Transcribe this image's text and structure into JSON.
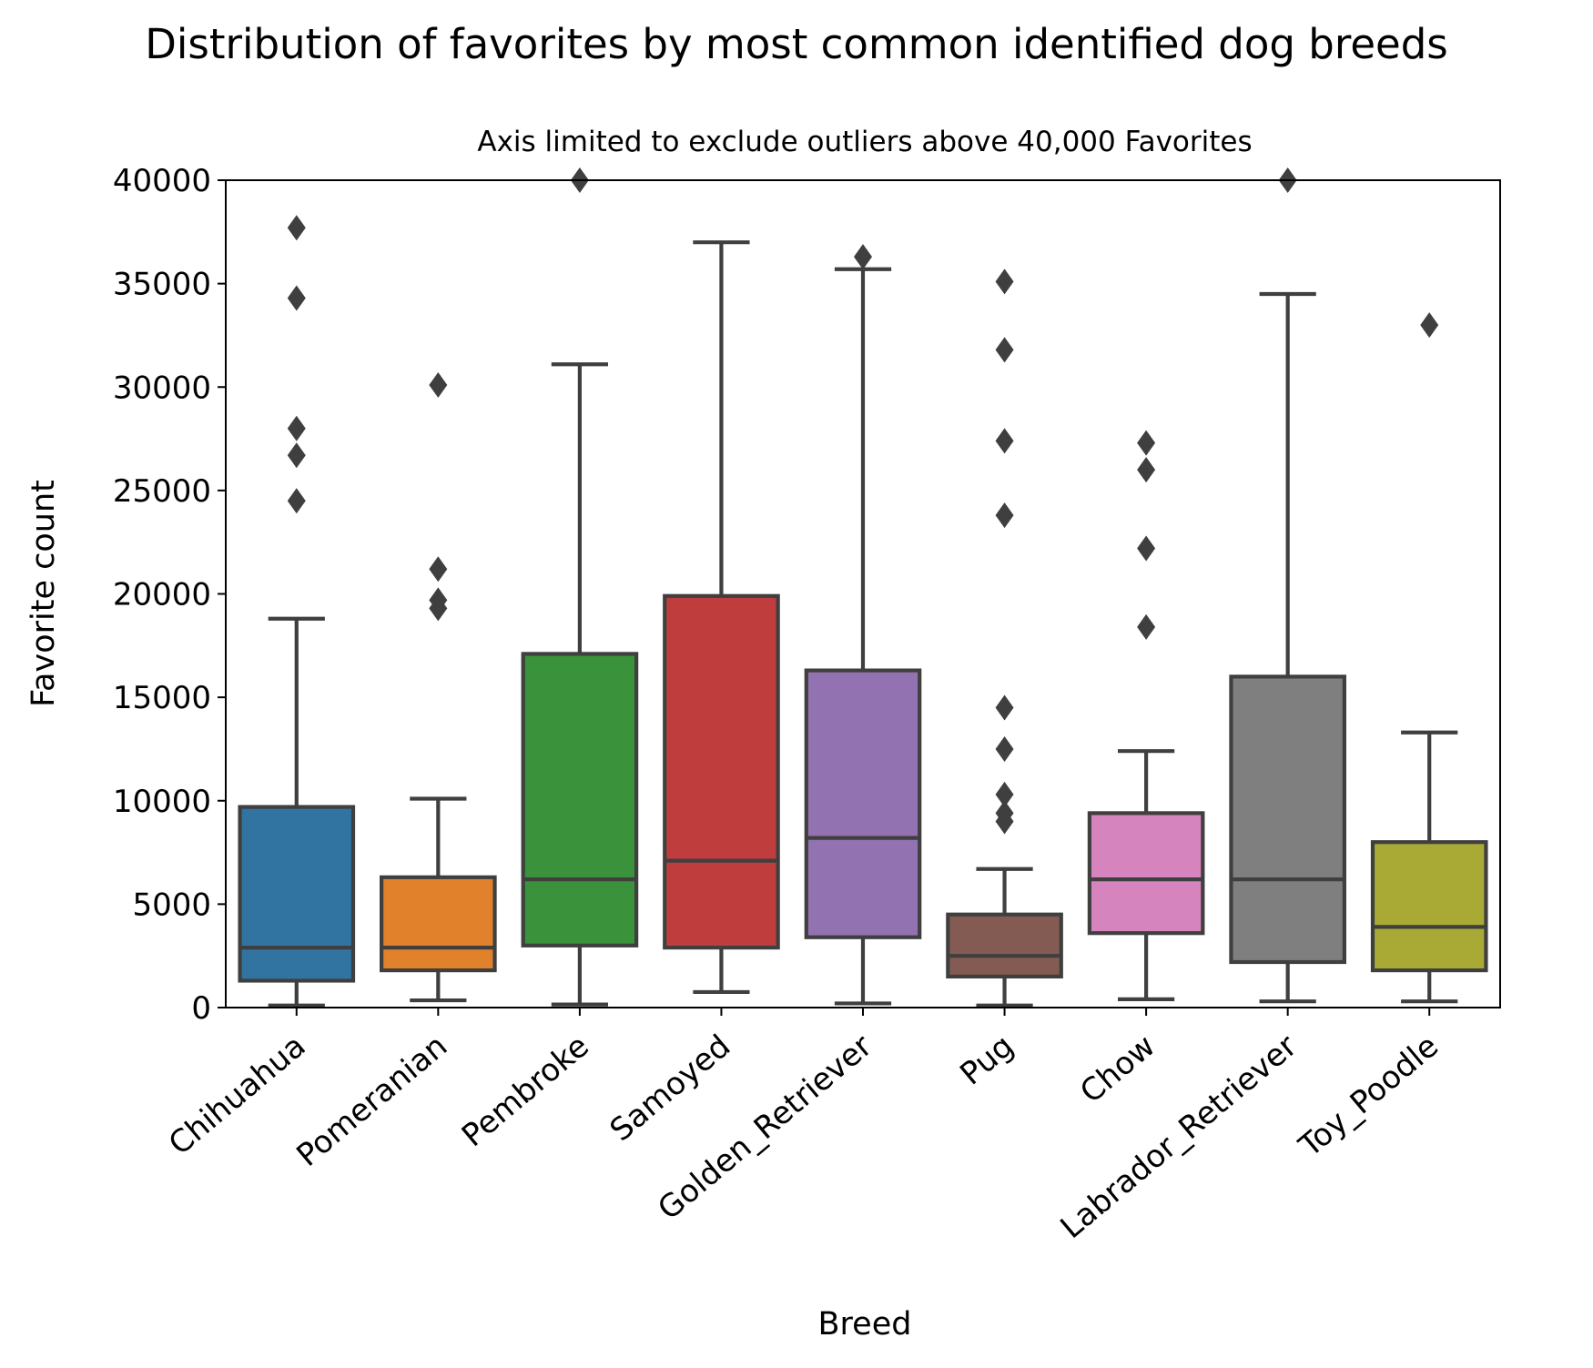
{
  "title": "Distribution of favorites by most common identified dog breeds",
  "subtitle": "Axis limited to exclude outliers above 40,000 Favorites",
  "chart_data": {
    "type": "box",
    "title": "Distribution of favorites by most common identified dog breeds",
    "subtitle": "Axis limited to exclude outliers above 40,000 Favorites",
    "xlabel": "Breed",
    "ylabel": "Favorite count",
    "ylim": [
      0,
      40000
    ],
    "yticks": [
      0,
      5000,
      10000,
      15000,
      20000,
      25000,
      30000,
      35000,
      40000
    ],
    "grid": false,
    "legend": "none",
    "categories": [
      "Chihuahua",
      "Pomeranian",
      "Pembroke",
      "Samoyed",
      "Golden_Retriever",
      "Pug",
      "Chow",
      "Labrador_Retriever",
      "Toy_Poodle"
    ],
    "boxes": [
      {
        "category": "Chihuahua",
        "color": "#3274a1",
        "whisker_low": 100,
        "q1": 1300,
        "median": 2900,
        "q3": 9700,
        "whisker_high": 18800,
        "outliers": [
          24500,
          26700,
          28000,
          34300,
          37700
        ]
      },
      {
        "category": "Pomeranian",
        "color": "#e1812c",
        "whisker_low": 350,
        "q1": 1800,
        "median": 2900,
        "q3": 6300,
        "whisker_high": 10100,
        "outliers": [
          19300,
          19700,
          21200,
          30100
        ]
      },
      {
        "category": "Pembroke",
        "color": "#3a923a",
        "whisker_low": 150,
        "q1": 3000,
        "median": 6200,
        "q3": 17100,
        "whisker_high": 31100,
        "outliers": [
          40000
        ]
      },
      {
        "category": "Samoyed",
        "color": "#c03d3e",
        "whisker_low": 750,
        "q1": 2900,
        "median": 7100,
        "q3": 19900,
        "whisker_high": 37000,
        "outliers": []
      },
      {
        "category": "Golden_Retriever",
        "color": "#9372b2",
        "whisker_low": 200,
        "q1": 3400,
        "median": 8200,
        "q3": 16300,
        "whisker_high": 35700,
        "outliers": [
          36300
        ]
      },
      {
        "category": "Pug",
        "color": "#845b53",
        "whisker_low": 100,
        "q1": 1500,
        "median": 2500,
        "q3": 4500,
        "whisker_high": 6700,
        "outliers": [
          9000,
          9400,
          10300,
          12500,
          14500,
          23800,
          27400,
          31800,
          35100
        ]
      },
      {
        "category": "Chow",
        "color": "#d684bd",
        "whisker_low": 400,
        "q1": 3600,
        "median": 6200,
        "q3": 9400,
        "whisker_high": 12400,
        "outliers": [
          18400,
          22200,
          26000,
          27300
        ]
      },
      {
        "category": "Labrador_Retriever",
        "color": "#7f7f7f",
        "whisker_low": 300,
        "q1": 2200,
        "median": 6200,
        "q3": 16000,
        "whisker_high": 34500,
        "outliers": [
          40000
        ]
      },
      {
        "category": "Toy_Poodle",
        "color": "#a9aa35",
        "whisker_low": 300,
        "q1": 1800,
        "median": 3900,
        "q3": 8000,
        "whisker_high": 13300,
        "outliers": [
          33000
        ]
      }
    ]
  }
}
